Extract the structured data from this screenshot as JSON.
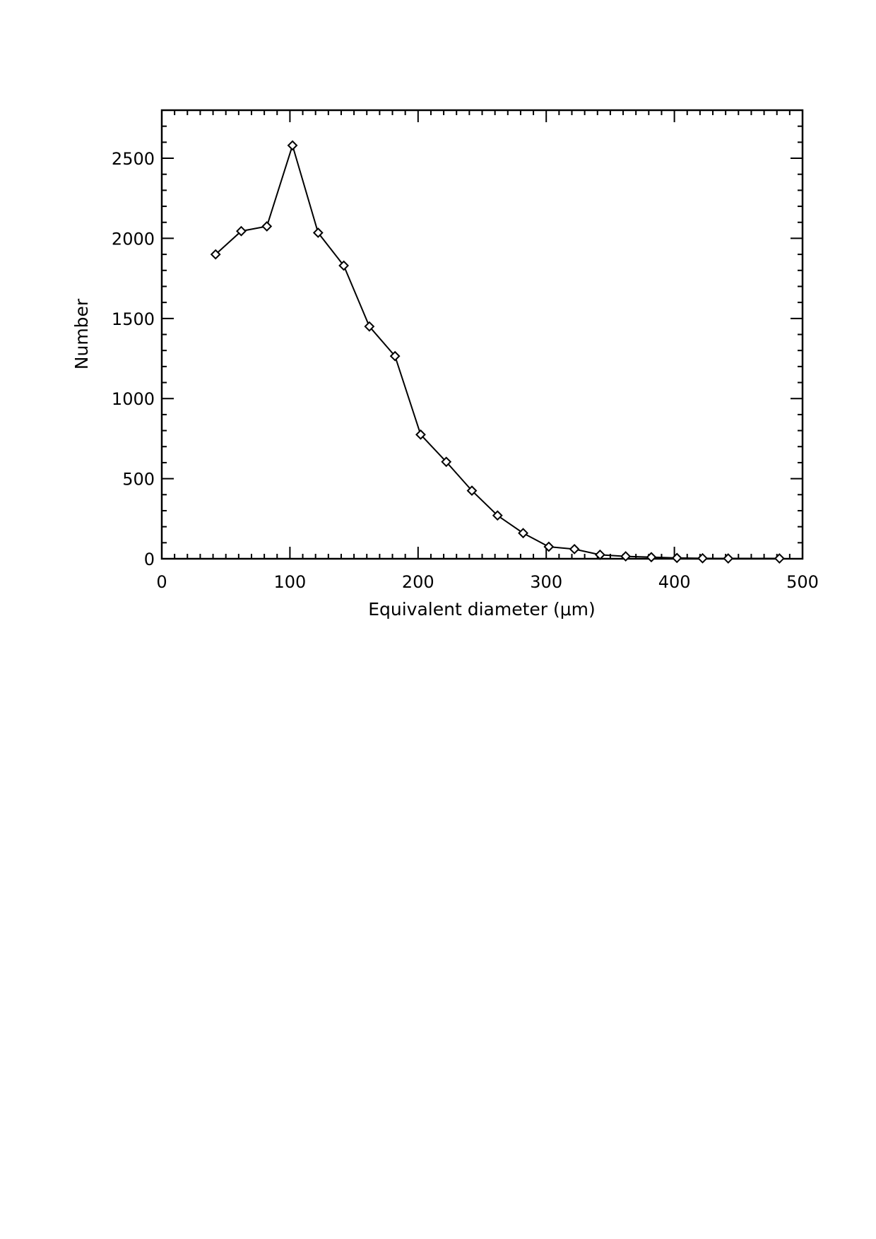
{
  "chart_data": {
    "type": "line",
    "title": "",
    "xlabel": "Equivalent diameter (μm)",
    "ylabel": "Number",
    "xlim": [
      0,
      500
    ],
    "ylim": [
      0,
      2800
    ],
    "xticks": [
      0,
      100,
      200,
      300,
      400,
      500
    ],
    "yticks": [
      0,
      500,
      1000,
      1500,
      2000,
      2500
    ],
    "x_minor_step": 10,
    "y_minor_step": 100,
    "grid": false,
    "legend": "none",
    "marker": "diamond",
    "series": [
      {
        "x": [
          42,
          62,
          82,
          102,
          122,
          142,
          162,
          182,
          202,
          222,
          242,
          262,
          282,
          302,
          322,
          342,
          362,
          382,
          402,
          422,
          442,
          482
        ],
        "y": [
          1900,
          2045,
          2075,
          2580,
          2035,
          1830,
          1450,
          1265,
          775,
          605,
          425,
          270,
          160,
          75,
          60,
          25,
          15,
          10,
          5,
          3,
          2,
          2
        ],
        "color": "#000000"
      }
    ]
  }
}
